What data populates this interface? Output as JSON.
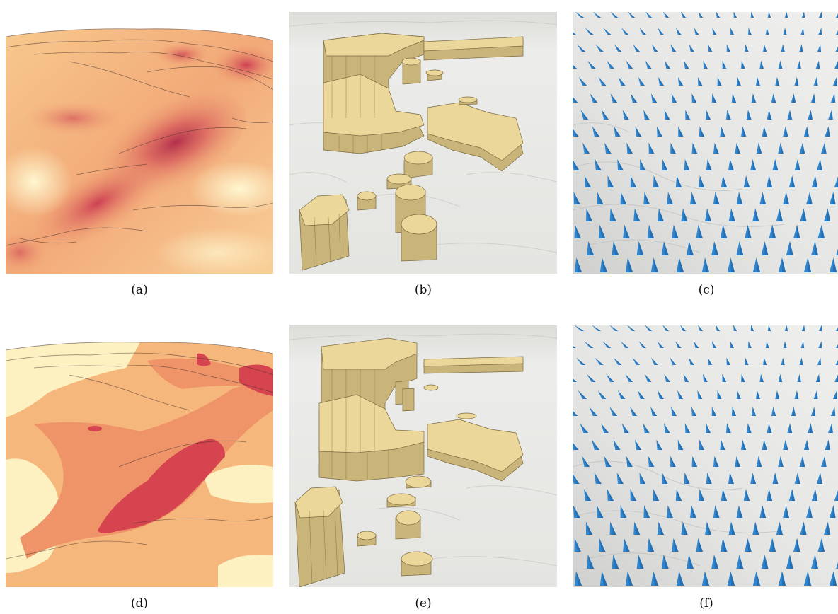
{
  "figure": {
    "panels": [
      {
        "id": "a",
        "label": "(a)",
        "style": "continuous-heatmap-terrain"
      },
      {
        "id": "b",
        "label": "(b)",
        "style": "extruded-regions-terrain"
      },
      {
        "id": "c",
        "label": "(c)",
        "style": "cone-glyphs-terrain"
      },
      {
        "id": "d",
        "label": "(d)",
        "style": "banded-heatmap-terrain"
      },
      {
        "id": "e",
        "label": "(e)",
        "style": "extruded-regions-terrain"
      },
      {
        "id": "f",
        "label": "(f)",
        "style": "cone-glyphs-terrain"
      }
    ],
    "colors": {
      "heat_low": "#fdf1c2",
      "heat_mid": "#f6b77c",
      "heat_high": "#c9354f",
      "terrain": "#e9e9e7",
      "prism_top": "#ecd79a",
      "prism_side": "#c9b47a",
      "cone": "#2f86cf"
    }
  }
}
